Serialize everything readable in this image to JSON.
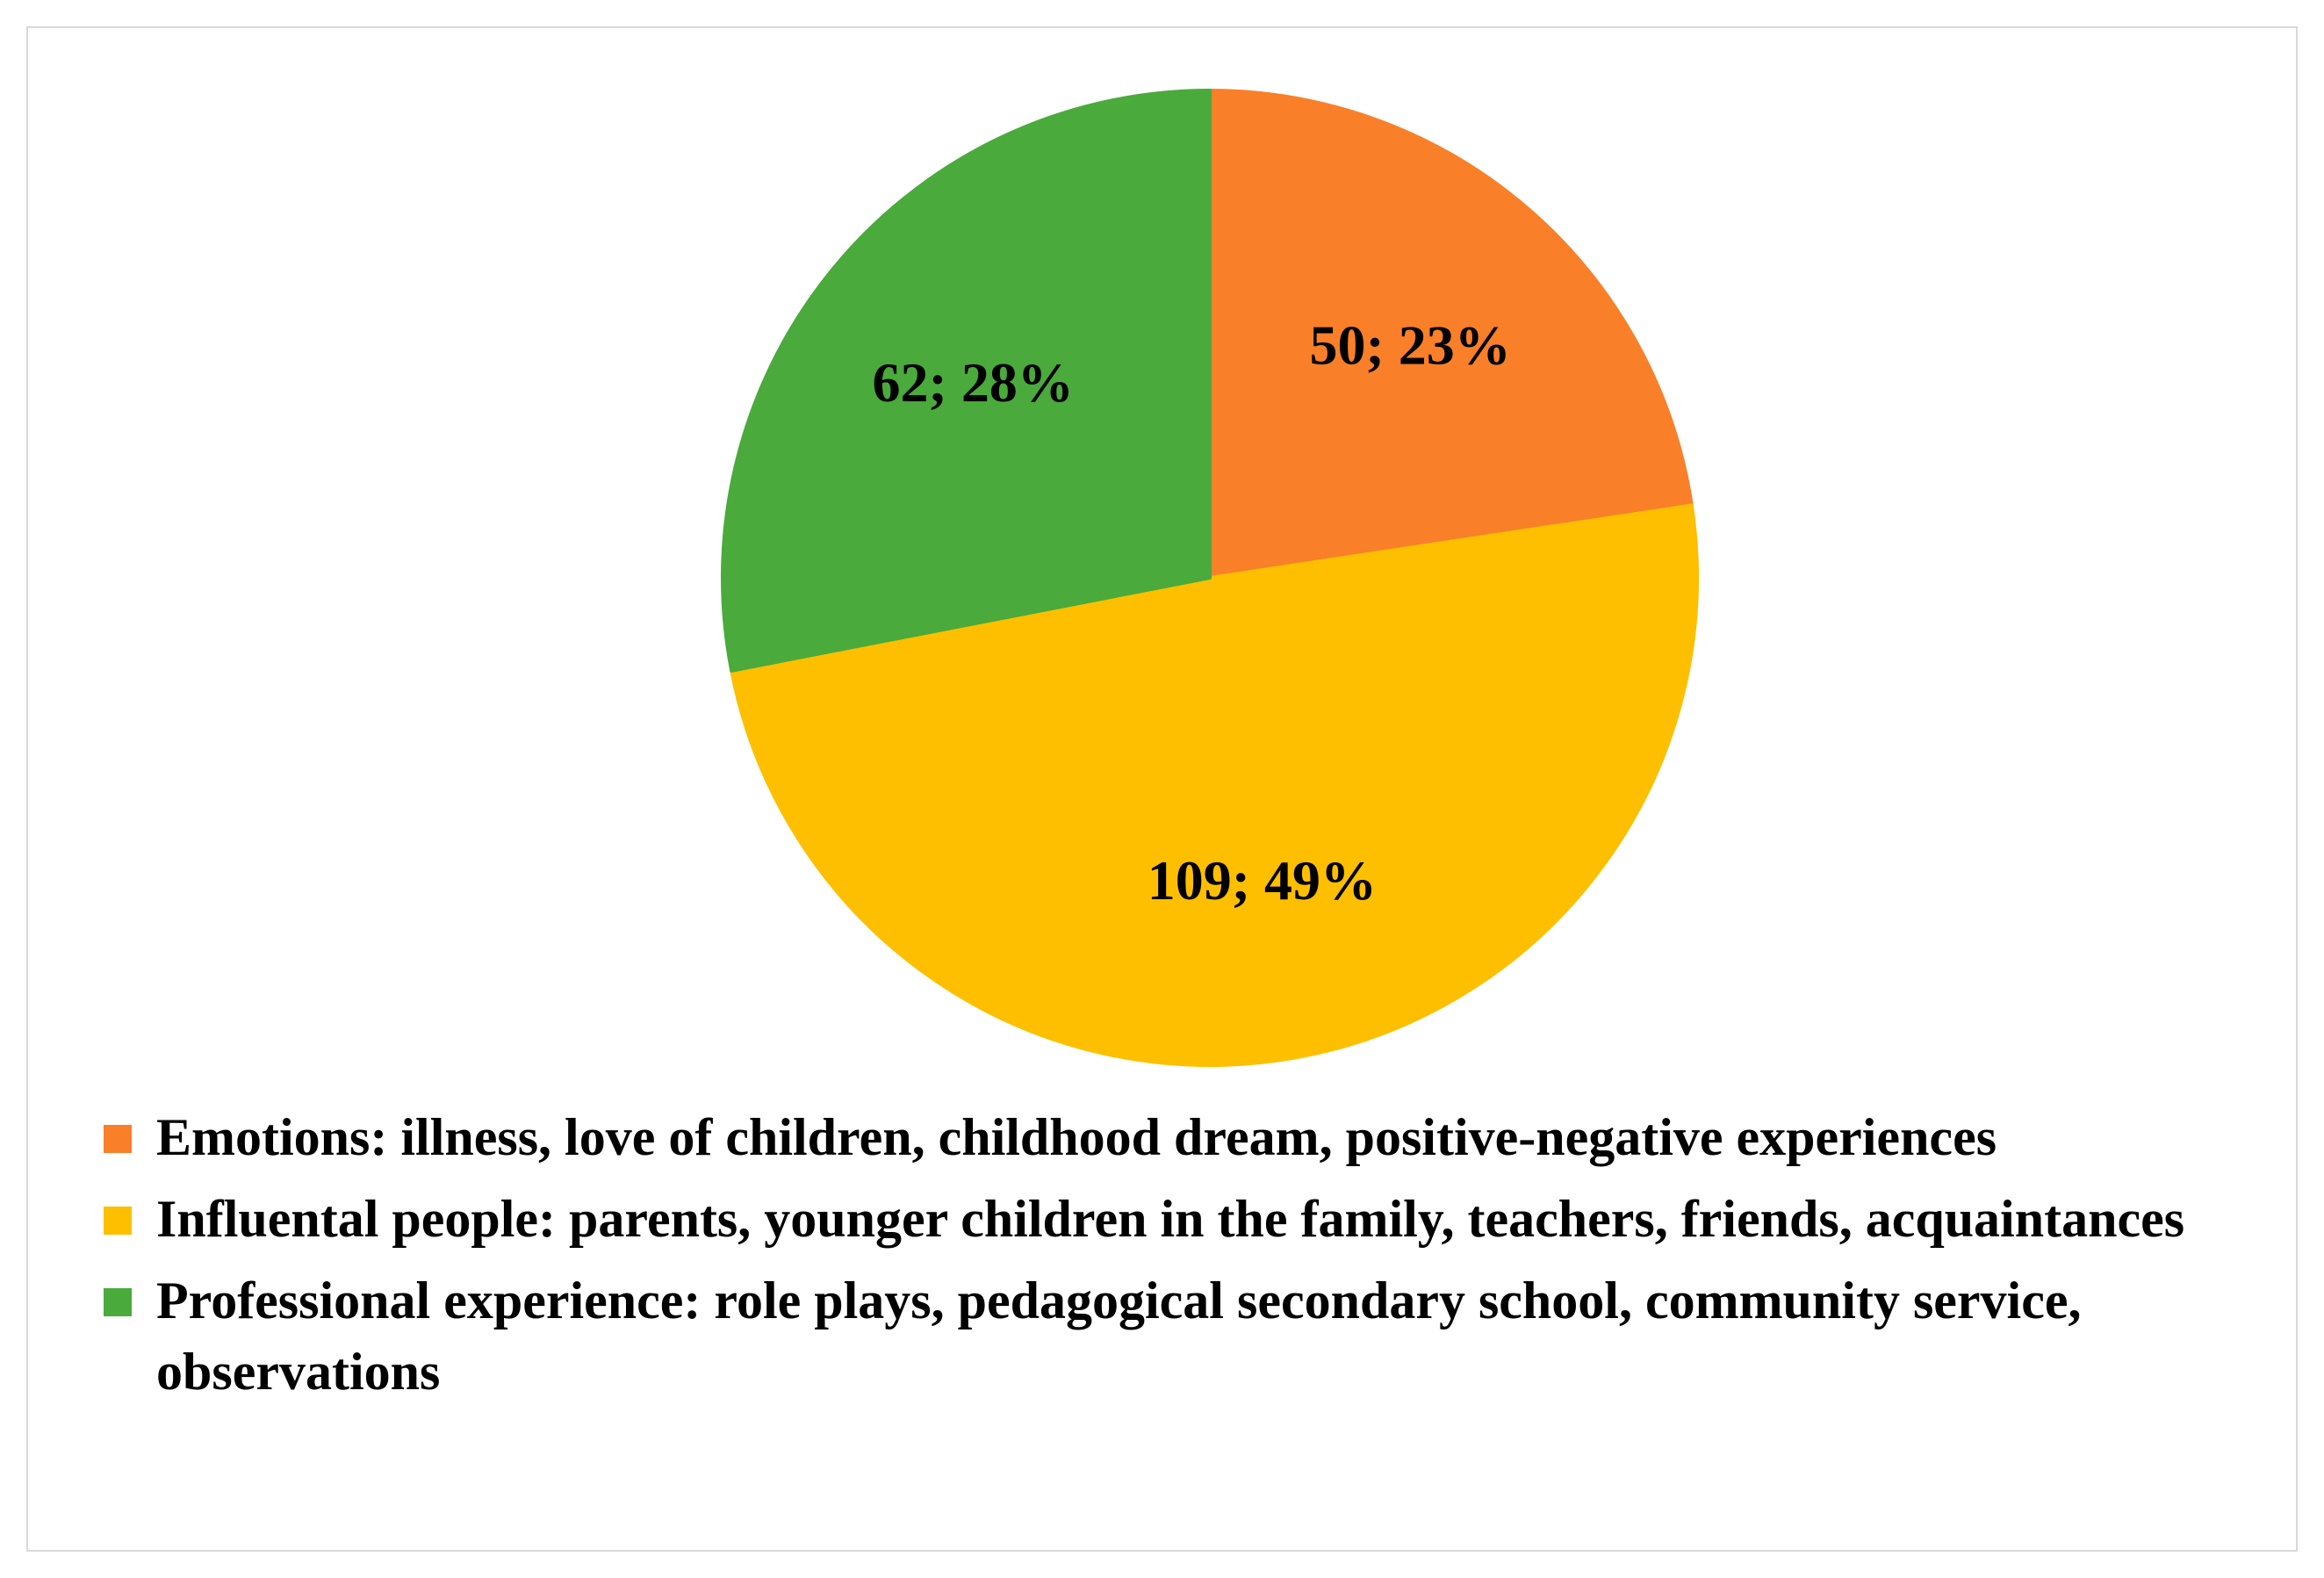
{
  "chart_data": {
    "type": "pie",
    "title": "",
    "slices": [
      {
        "name": "Emotions: illness, love of children, childhood dream, positive-negative experiences",
        "value": 50,
        "percent": 23,
        "label": "50; 23%",
        "color": "#F97F28"
      },
      {
        "name": "Influental people: parents, younger children in the family, teachers, friends, acquaintances",
        "value": 109,
        "percent": 49,
        "label": "109; 49%",
        "color": "#FDBF00"
      },
      {
        "name": " Professional experience: role plays, pedagogical secondary school, community service, observations",
        "value": 62,
        "percent": 28,
        "label": "62; 28%",
        "color": "#4AAA3B"
      }
    ],
    "legend_position": "bottom",
    "start_angle": "12 o'clock",
    "direction": "clockwise"
  }
}
